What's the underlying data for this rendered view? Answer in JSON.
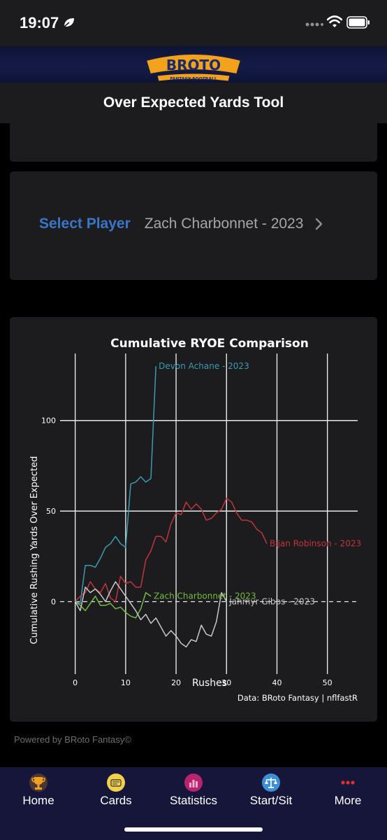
{
  "status_bar": {
    "time": "19:07"
  },
  "logo": {
    "brand": "BROTO",
    "tagline": "FANTASY FOOTBALL"
  },
  "header": {
    "title": "Over Expected Yards Tool"
  },
  "player_select": {
    "label": "Select Player",
    "value": "Zach Charbonnet - 2023"
  },
  "chart_data": {
    "type": "line",
    "title": "Cumulative RYOE Comparison",
    "xlabel": "Rushes",
    "ylabel": "Cumulative Rushing Yards Over Expected",
    "xlim": [
      -3,
      56
    ],
    "ylim": [
      -40,
      137
    ],
    "xticks": [
      0,
      10,
      20,
      30,
      40,
      50
    ],
    "yticks": [
      0,
      50,
      100
    ],
    "grid": true,
    "zero_line": "dashed",
    "source": "Data: BRoto Fantasy | nflfastR",
    "series": [
      {
        "name": "Devon Achane - 2023",
        "color": "#3b9bb0",
        "x": [
          0,
          1,
          2,
          3,
          4,
          5,
          6,
          7,
          8,
          9,
          10,
          11,
          12,
          13,
          14,
          15,
          16
        ],
        "y": [
          0,
          -1,
          20,
          20,
          19,
          24,
          30,
          32,
          36,
          32,
          30,
          65,
          66,
          69,
          66,
          68,
          130
        ]
      },
      {
        "name": "Bijan Robinson - 2023",
        "color": "#c0353d",
        "x": [
          0,
          1,
          2,
          3,
          4,
          5,
          6,
          7,
          8,
          9,
          10,
          11,
          12,
          13,
          14,
          15,
          16,
          17,
          18,
          19,
          20,
          21,
          22,
          23,
          24,
          25,
          26,
          27,
          28,
          29,
          30,
          31,
          32,
          33,
          34,
          35,
          36,
          37,
          38
        ],
        "y": [
          0,
          3,
          5,
          11,
          7,
          5,
          10,
          2,
          0,
          14,
          10,
          11,
          8,
          8,
          23,
          28,
          36,
          36,
          33,
          43,
          49,
          48,
          55,
          51,
          54,
          51,
          45,
          46,
          49,
          51,
          57,
          55,
          49,
          45,
          45,
          44,
          40,
          38,
          32
        ]
      },
      {
        "name": "Zach Charbonnet - 2023",
        "color": "#72bc3e",
        "x": [
          0,
          1,
          2,
          3,
          4,
          5,
          6,
          7,
          8,
          9,
          10,
          11,
          12,
          13,
          14,
          15
        ],
        "y": [
          0,
          -2,
          -5,
          -1,
          3,
          -2,
          -2,
          -1,
          -4,
          -3,
          -6,
          -8,
          -9,
          -4,
          5,
          3
        ]
      },
      {
        "name": "Jahmyr Gibbs - 2023",
        "color": "#c8c8c8",
        "x": [
          0,
          1,
          2,
          3,
          4,
          5,
          6,
          7,
          8,
          9,
          10,
          11,
          12,
          13,
          14,
          15,
          16,
          17,
          18,
          19,
          20,
          21,
          22,
          23,
          24,
          25,
          26,
          27,
          28,
          29,
          30
        ],
        "y": [
          0,
          -5,
          8,
          5,
          7,
          4,
          0,
          6,
          11,
          7,
          3,
          -1,
          -5,
          -10,
          -7,
          -12,
          -9,
          -14,
          -19,
          -16,
          -19,
          -23,
          -25,
          -21,
          -22,
          -13,
          -18,
          -19,
          -11,
          5,
          0
        ]
      }
    ]
  },
  "footer": {
    "powered_by": "Powered by BRoto Fantasy©"
  },
  "tabs": [
    {
      "label": "Home",
      "icon": "trophy-icon"
    },
    {
      "label": "Cards",
      "icon": "cards-icon"
    },
    {
      "label": "Statistics",
      "icon": "bar-chart-icon"
    },
    {
      "label": "Start/Sit",
      "icon": "scales-icon"
    },
    {
      "label": "More",
      "icon": "more-dots-icon"
    }
  ]
}
